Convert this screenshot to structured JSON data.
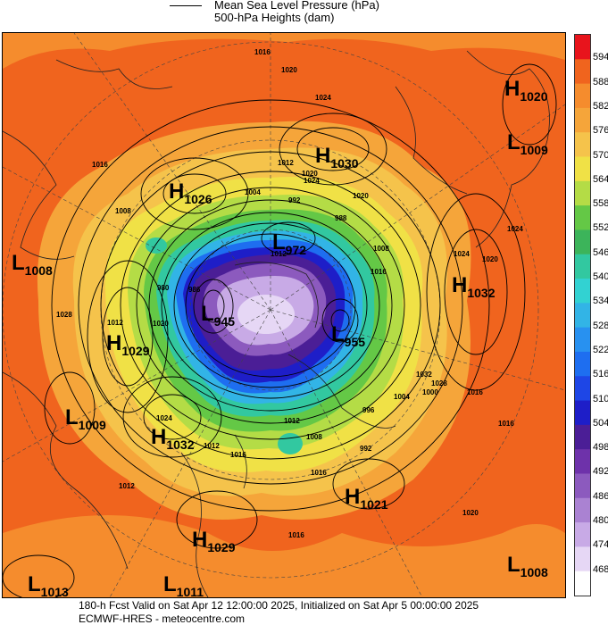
{
  "legend": {
    "line1": "Mean Sea Level Pressure (hPa)",
    "line2": "500-hPa Heights (dam)"
  },
  "colorbar": {
    "labels": [
      "594",
      "588",
      "582",
      "576",
      "570",
      "564",
      "558",
      "552",
      "546",
      "540",
      "534",
      "528",
      "522",
      "516",
      "510",
      "504",
      "498",
      "492",
      "486",
      "480",
      "474",
      "468"
    ],
    "colors": [
      "#e8141c",
      "#f0641e",
      "#f58c2d",
      "#f5a53a",
      "#f5c34b",
      "#f0e146",
      "#b4dc46",
      "#64c846",
      "#3cb45a",
      "#32c8a0",
      "#32d2d2",
      "#32b4e6",
      "#2891f0",
      "#1e6ef0",
      "#1e46e6",
      "#1e1ec8",
      "#4b1e96",
      "#6e32aa",
      "#8c5abe",
      "#aa82d2",
      "#c8aae6",
      "#e6d7f5",
      "#ffffff"
    ]
  },
  "systems": [
    {
      "type": "H",
      "value": "1020",
      "name": "system-h-1020"
    },
    {
      "type": "L",
      "value": "1009",
      "name": "system-l-1009-ne"
    },
    {
      "type": "H",
      "value": "1030",
      "name": "system-h-1030"
    },
    {
      "type": "H",
      "value": "1026",
      "name": "system-h-1026"
    },
    {
      "type": "L",
      "value": "1008",
      "name": "system-l-1008-w"
    },
    {
      "type": "L",
      "value": "972",
      "name": "system-l-972"
    },
    {
      "type": "H",
      "value": "1032",
      "name": "system-h-1032-e"
    },
    {
      "type": "L",
      "value": "945",
      "name": "system-l-945"
    },
    {
      "type": "L",
      "value": "955",
      "name": "system-l-955"
    },
    {
      "type": "H",
      "value": "1029",
      "name": "system-h-1029-w"
    },
    {
      "type": "L",
      "value": "1009",
      "name": "system-l-1009-sw"
    },
    {
      "type": "H",
      "value": "1032",
      "name": "system-h-1032-s"
    },
    {
      "type": "H",
      "value": "1021",
      "name": "system-h-1021"
    },
    {
      "type": "H",
      "value": "1029",
      "name": "system-h-1029-s"
    },
    {
      "type": "L",
      "value": "1008",
      "name": "system-l-1008-se"
    },
    {
      "type": "L",
      "value": "1013",
      "name": "system-l-1013"
    },
    {
      "type": "L",
      "value": "1011",
      "name": "system-l-1011"
    }
  ],
  "contour_labels": [
    "1016",
    "1020",
    "1024",
    "1016",
    "1012",
    "1008",
    "1004",
    "992",
    "988",
    "980",
    "986",
    "1012",
    "1028",
    "1020",
    "1024",
    "1012",
    "1016",
    "1012",
    "1008",
    "1004",
    "1000",
    "996",
    "992",
    "1016",
    "1020",
    "1024",
    "1028",
    "1032",
    "1016",
    "1020",
    "1024",
    "1008",
    "1016",
    "1012",
    "1016",
    "1020",
    "1024",
    "1020",
    "1012",
    "1016"
  ],
  "footer": {
    "line1": "180-h Fcst Valid on Sat Apr 12 12:00:00 2025, Initialized on Sat Apr  5 00:00:00 2025",
    "line2": "ECMWF-HRES  - meteocentre.com"
  }
}
